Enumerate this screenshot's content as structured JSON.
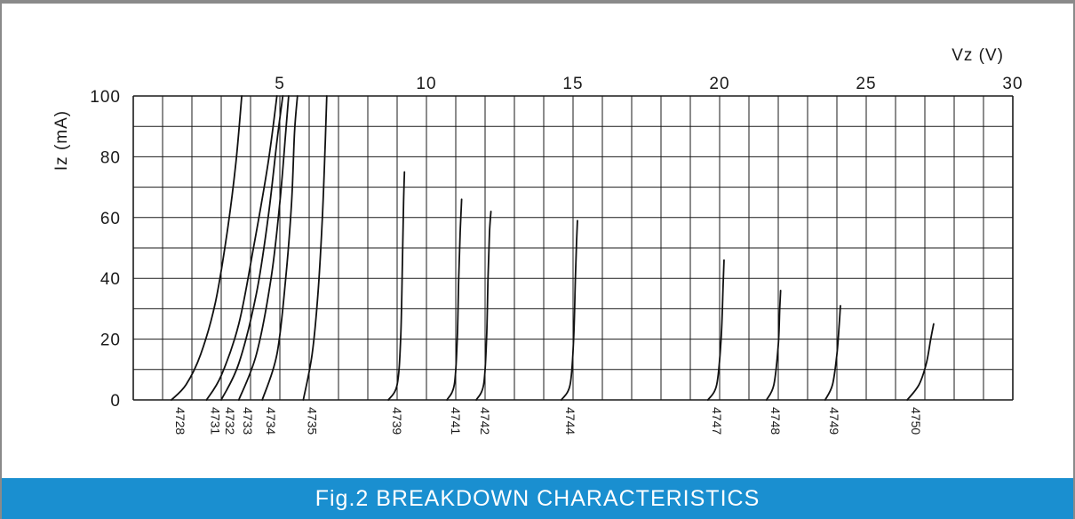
{
  "caption": "Fig.2 BREAKDOWN CHARACTERISTICS",
  "colors": {
    "caption_bg": "#1a8fd0",
    "grid": "#1a1a1a",
    "curve": "#111111",
    "frame": "#8a8a8a"
  },
  "chart_data": {
    "type": "line",
    "title": "Fig.2 BREAKDOWN CHARACTERISTICS",
    "xlabel": "Vz (V)",
    "ylabel": "Iz (mA)",
    "xlim": [
      0,
      30
    ],
    "ylim": [
      0,
      100
    ],
    "x_ticks": [
      "5",
      "10",
      "15",
      "20",
      "25",
      "30"
    ],
    "x_tick_values": [
      5,
      10,
      15,
      20,
      25,
      30
    ],
    "y_ticks": [
      "0",
      "20",
      "40",
      "60",
      "80",
      "100"
    ],
    "y_tick_values": [
      0,
      20,
      40,
      60,
      80,
      100
    ],
    "grid": true,
    "x_axis_position": "top",
    "series": [
      {
        "name": "4728",
        "x": [
          1.3,
          1.8,
          2.3,
          2.8,
          3.2,
          3.5,
          3.7
        ],
        "y": [
          0,
          5,
          15,
          32,
          55,
          78,
          100
        ]
      },
      {
        "name": "4731",
        "x": [
          2.5,
          3.0,
          3.6,
          4.1,
          4.6,
          4.9
        ],
        "y": [
          0,
          8,
          25,
          50,
          78,
          100
        ]
      },
      {
        "name": "4732",
        "x": [
          3.0,
          3.6,
          4.2,
          4.6,
          4.9,
          5.1
        ],
        "y": [
          0,
          12,
          35,
          60,
          85,
          100
        ]
      },
      {
        "name": "4733",
        "x": [
          3.6,
          4.2,
          4.7,
          5.0,
          5.2,
          5.3
        ],
        "y": [
          0,
          15,
          40,
          65,
          88,
          100
        ]
      },
      {
        "name": "4734",
        "x": [
          4.4,
          4.9,
          5.2,
          5.4,
          5.5,
          5.6
        ],
        "y": [
          0,
          15,
          40,
          65,
          88,
          100
        ]
      },
      {
        "name": "4735",
        "x": [
          5.8,
          6.1,
          6.3,
          6.45,
          6.55,
          6.6
        ],
        "y": [
          0,
          15,
          35,
          60,
          85,
          100
        ]
      },
      {
        "name": "4739",
        "x": [
          8.7,
          9.0,
          9.12,
          9.18,
          9.22,
          9.25
        ],
        "y": [
          0,
          5,
          20,
          45,
          65,
          75
        ]
      },
      {
        "name": "4741",
        "x": [
          10.7,
          10.95,
          11.05,
          11.1,
          11.15,
          11.2
        ],
        "y": [
          0,
          5,
          20,
          40,
          55,
          66
        ]
      },
      {
        "name": "4742",
        "x": [
          11.7,
          11.95,
          12.05,
          12.1,
          12.15,
          12.2
        ],
        "y": [
          0,
          5,
          20,
          40,
          55,
          62
        ]
      },
      {
        "name": "4744",
        "x": [
          14.6,
          14.9,
          15.02,
          15.08,
          15.12,
          15.15
        ],
        "y": [
          0,
          5,
          20,
          40,
          52,
          59
        ]
      },
      {
        "name": "4747",
        "x": [
          19.6,
          19.9,
          20.05,
          20.12,
          20.15
        ],
        "y": [
          0,
          5,
          20,
          38,
          46
        ]
      },
      {
        "name": "4748",
        "x": [
          21.6,
          21.85,
          22.0,
          22.05,
          22.08
        ],
        "y": [
          0,
          5,
          18,
          30,
          36
        ]
      },
      {
        "name": "4749",
        "x": [
          23.6,
          23.85,
          24.0,
          24.08,
          24.12
        ],
        "y": [
          0,
          5,
          15,
          25,
          31
        ]
      },
      {
        "name": "4750",
        "x": [
          26.4,
          26.8,
          27.05,
          27.2,
          27.3
        ],
        "y": [
          0,
          5,
          12,
          20,
          25
        ]
      }
    ]
  }
}
